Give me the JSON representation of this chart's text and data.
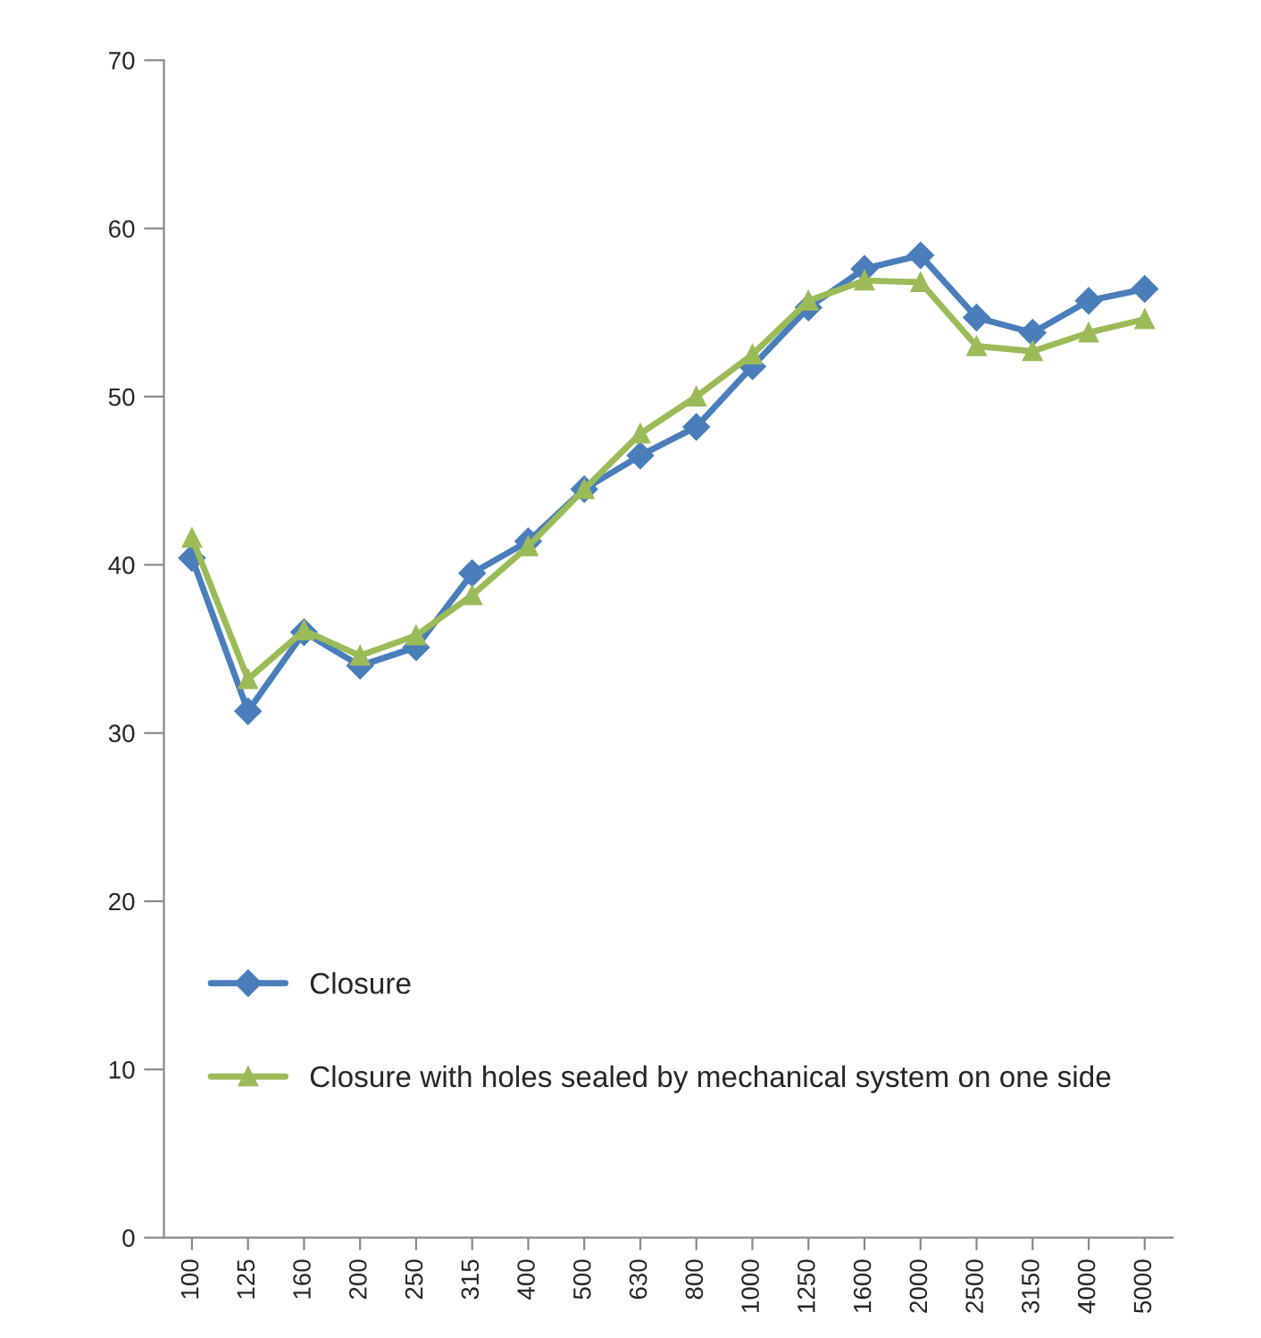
{
  "chart_data": {
    "type": "line",
    "categories": [
      "100",
      "125",
      "160",
      "200",
      "250",
      "315",
      "400",
      "500",
      "630",
      "800",
      "1000",
      "1250",
      "1600",
      "2000",
      "2500",
      "3150",
      "4000",
      "5000"
    ],
    "series": [
      {
        "name": "Closure",
        "color": "#4a7ebb",
        "marker": "diamond",
        "values": [
          40.4,
          31.3,
          36,
          34,
          35.1,
          39.5,
          41.4,
          44.5,
          46.5,
          48.2,
          51.8,
          55.3,
          57.6,
          58.4,
          54.7,
          53.8,
          55.7,
          56.4
        ]
      },
      {
        "name": "Closure with holes sealed by mechanical system on one side",
        "color": "#9bbb59",
        "marker": "triangle",
        "values": [
          41.6,
          33.2,
          36.1,
          34.6,
          35.8,
          38.2,
          41.1,
          44.5,
          47.8,
          50,
          52.5,
          55.7,
          56.9,
          56.8,
          53,
          52.7,
          53.8,
          54.6
        ]
      }
    ],
    "ylim": [
      0,
      70
    ],
    "yticks": [
      0,
      10,
      20,
      30,
      40,
      50,
      60,
      70
    ],
    "grid": false,
    "legend": "bottom left",
    "line_style": "solid"
  }
}
